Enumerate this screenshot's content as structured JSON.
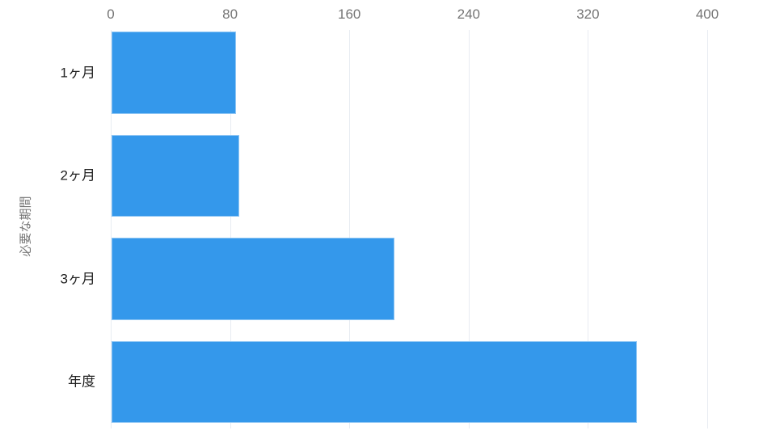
{
  "chart_data": {
    "type": "bar",
    "orientation": "horizontal",
    "title": "",
    "xlabel": "",
    "ylabel": "必要な期間",
    "categories": [
      "1ヶ月",
      "2ヶ月",
      "3ヶ月",
      "年度"
    ],
    "values": [
      84,
      86,
      190,
      353
    ],
    "x_ticks": [
      0,
      80,
      160,
      240,
      320,
      400
    ],
    "xlim": [
      0,
      400
    ],
    "axis_position": "top",
    "grid": true,
    "legend": false,
    "colors": {
      "bar": "#3498EB",
      "gridline": "#E8ECF2",
      "tick_label": "#757575",
      "category_label": "#212121",
      "axis_title": "#757575",
      "background": "#FFFFFF"
    }
  }
}
